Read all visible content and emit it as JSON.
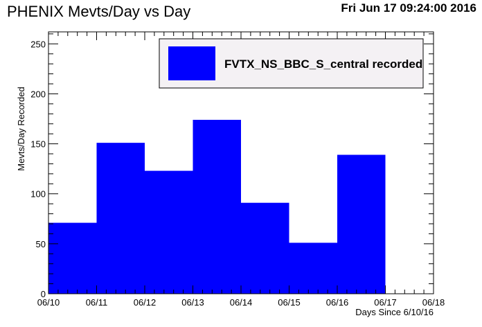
{
  "header": {
    "title": "PHENIX Mevts/Day vs Day",
    "timestamp": "Fri Jun 17 09:24:00 2016"
  },
  "colors": {
    "bar_fill": "#0000ff",
    "legend_box": "#f4f1f4",
    "frame": "#000000"
  },
  "chart_data": {
    "type": "bar",
    "title": "PHENIX Mevts/Day vs Day",
    "xlabel": "Days Since 6/10/16",
    "ylabel": "Mevts/Day Recorded",
    "categories": [
      "06/10",
      "06/11",
      "06/12",
      "06/13",
      "06/14",
      "06/15",
      "06/16"
    ],
    "x_tick_labels": [
      "06/10",
      "06/11",
      "06/12",
      "06/13",
      "06/14",
      "06/15",
      "06/16",
      "06/17",
      "06/18"
    ],
    "xlim": [
      0,
      8
    ],
    "ylim": [
      0,
      262
    ],
    "y_ticks": [
      0,
      50,
      100,
      150,
      200,
      250
    ],
    "series": [
      {
        "name": "FVTX_NS_BBC_S_central recorded",
        "values": [
          71,
          151,
          123,
          174,
          91,
          51,
          139
        ]
      }
    ],
    "grid": false,
    "legend_position": "top-right"
  }
}
